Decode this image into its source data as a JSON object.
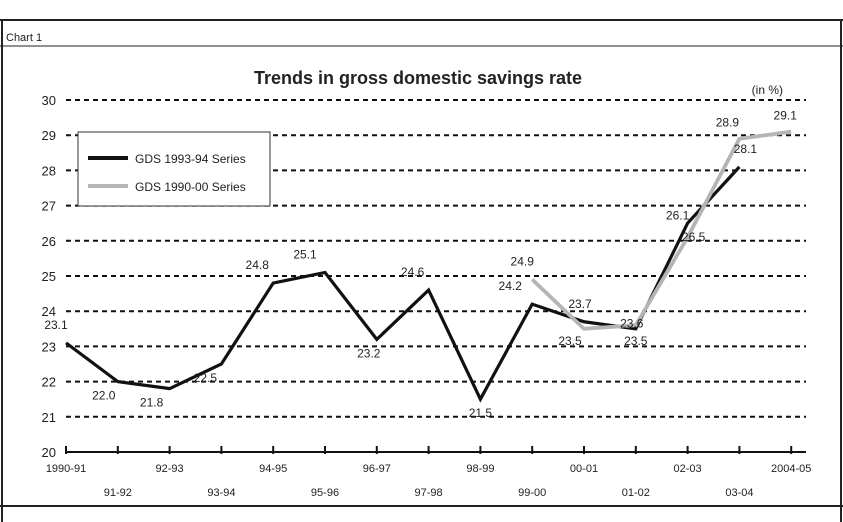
{
  "chart_label": "Chart 1",
  "chart_data": {
    "type": "line",
    "title": "Trends in gross domestic savings rate",
    "unit_note": "(in %)",
    "xlabel": "",
    "ylabel": "",
    "ylim": [
      20,
      30
    ],
    "yticks": [
      20,
      21,
      22,
      23,
      24,
      25,
      26,
      27,
      28,
      29,
      30
    ],
    "categories": [
      "1990-91",
      "91-92",
      "92-93",
      "93-94",
      "94-95",
      "95-96",
      "96-97",
      "97-98",
      "98-99",
      "99-00",
      "00-01",
      "01-02",
      "02-03",
      "03-04",
      "2004-05"
    ],
    "grid": "horizontal dashed",
    "legend_position": "top-left",
    "series": [
      {
        "name": "GDS 1993-94 Series",
        "color": "#111111",
        "points": [
          {
            "x": "1990-91",
            "y": 23.1
          },
          {
            "x": "91-92",
            "y": 22.0
          },
          {
            "x": "92-93",
            "y": 21.8
          },
          {
            "x": "93-94",
            "y": 22.5
          },
          {
            "x": "94-95",
            "y": 24.8
          },
          {
            "x": "95-96",
            "y": 25.1
          },
          {
            "x": "96-97",
            "y": 23.2
          },
          {
            "x": "97-98",
            "y": 24.6
          },
          {
            "x": "98-99",
            "y": 21.5
          },
          {
            "x": "99-00",
            "y": 24.2
          },
          {
            "x": "00-01",
            "y": 23.7
          },
          {
            "x": "01-02",
            "y": 23.5
          },
          {
            "x": "02-03",
            "y": 26.5
          },
          {
            "x": "03-04",
            "y": 28.1
          }
        ]
      },
      {
        "name": "GDS 1990-00 Series",
        "color": "#b5b5b5",
        "points": [
          {
            "x": "99-00",
            "y": 24.9
          },
          {
            "x": "00-01",
            "y": 23.5
          },
          {
            "x": "01-02",
            "y": 23.6
          },
          {
            "x": "02-03",
            "y": 26.1
          },
          {
            "x": "03-04",
            "y": 28.9
          },
          {
            "x": "2004-05",
            "y": 29.1
          }
        ]
      }
    ]
  }
}
